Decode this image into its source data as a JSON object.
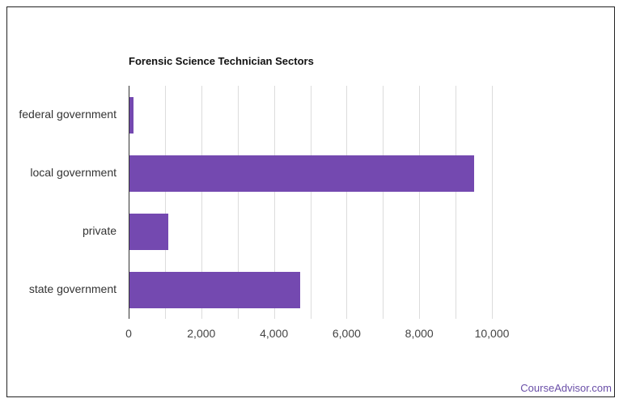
{
  "chart_data": {
    "type": "bar",
    "orientation": "horizontal",
    "title": "Forensic Science Technician Sectors",
    "categories": [
      "federal government",
      "local government",
      "private",
      "state government"
    ],
    "values": [
      130,
      9510,
      1090,
      4720
    ],
    "xlabel": "",
    "ylabel": "",
    "xlim": [
      0,
      10000
    ],
    "xticks": [
      0,
      2000,
      4000,
      6000,
      8000,
      10000
    ],
    "xtick_labels": [
      "0",
      "2,000",
      "4,000",
      "6,000",
      "8,000",
      "10,000"
    ],
    "grid": true,
    "legend": null,
    "bar_color": "#7449b0"
  },
  "credit": "CourseAdvisor.com"
}
